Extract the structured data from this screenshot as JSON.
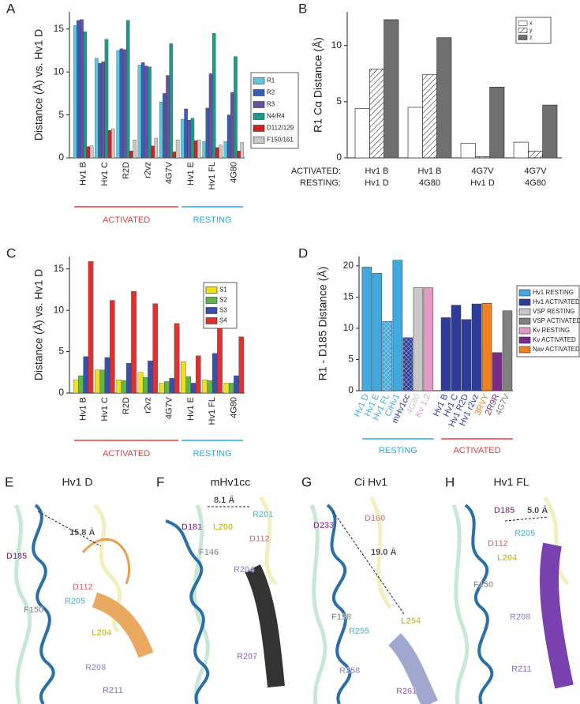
{
  "chart_data": [
    {
      "type": "bar",
      "panel": "A",
      "ylabel": "Distance (Å) vs. Hv1 D",
      "ylim": [
        0,
        17
      ],
      "yticks": [
        0,
        5,
        10,
        15
      ],
      "groups": [
        {
          "label": "ACTIVATED",
          "color": "#e0403a",
          "categories": [
            "Hv1 B",
            "Hv1 C",
            "R2D",
            "r2vz",
            "4G7V"
          ]
        },
        {
          "label": "RESTING",
          "color": "#29abe2",
          "categories": [
            "Hv1 E",
            "Hv1 FL",
            "4G80"
          ]
        }
      ],
      "series": [
        {
          "name": "R1",
          "color": "#5bc8e0",
          "values": [
            15.4,
            11.6,
            12.5,
            10.8,
            6.5,
            4.5,
            1.9,
            1.9
          ]
        },
        {
          "name": "R2",
          "color": "#3a5fb0",
          "values": [
            16.0,
            11.0,
            12.7,
            11.1,
            7.5,
            5.7,
            5.8,
            5.0
          ]
        },
        {
          "name": "R3",
          "color": "#6b4fa0",
          "values": [
            16.1,
            11.2,
            12.6,
            10.7,
            9.6,
            4.4,
            9.8,
            7.6
          ]
        },
        {
          "name": "N4/R4",
          "color": "#1a9b8a",
          "values": [
            14.7,
            13.8,
            16.0,
            10.6,
            13.3,
            4.6,
            14.5,
            11.8
          ]
        },
        {
          "name": "D112/129",
          "color": "#d02020",
          "values": [
            1.3,
            3.2,
            0.8,
            1.4,
            0.7,
            2.0,
            1.2,
            0.8
          ]
        },
        {
          "name": "F150/161",
          "color": "#c8c8c8",
          "values": [
            1.4,
            3.4,
            2.1,
            2.3,
            2.1,
            2.1,
            1.5,
            1.8
          ]
        }
      ]
    },
    {
      "type": "bar",
      "panel": "B",
      "ylabel": "R1 Cα Distance (Å)",
      "ylim": [
        0,
        13
      ],
      "yticks": [
        0,
        5,
        10
      ],
      "category_rows": [
        {
          "label": "ACTIVATED:",
          "categories": [
            "Hv1 B",
            "Hv1 B",
            "4G7V",
            "4G7V"
          ]
        },
        {
          "label": "RESTING:",
          "categories": [
            "Hv1 D",
            "4G80",
            "Hv1 D",
            "4G80"
          ]
        }
      ],
      "series": [
        {
          "name": "x",
          "color": "#ffffff",
          "values": [
            4.4,
            4.5,
            1.3,
            1.4
          ]
        },
        {
          "name": "y",
          "color": "#ffffff",
          "pattern": "hatch",
          "values": [
            7.9,
            7.4,
            0.1,
            0.6
          ]
        },
        {
          "name": "z",
          "color": "#707070",
          "values": [
            12.3,
            10.7,
            6.3,
            4.7
          ]
        }
      ]
    },
    {
      "type": "bar",
      "panel": "C",
      "ylabel": "Distance (Å) vs. Hv1 D",
      "ylim": [
        0,
        16.5
      ],
      "yticks": [
        0,
        5,
        10,
        15
      ],
      "groups": [
        {
          "label": "ACTIVATED",
          "color": "#e0403a",
          "categories": [
            "Hv1 B",
            "Hv1 C",
            "R2D",
            "r2vz",
            "4G7V"
          ]
        },
        {
          "label": "RESTING",
          "color": "#29abe2",
          "categories": [
            "Hv1 E",
            "Hv1 FL",
            "4G80"
          ]
        }
      ],
      "series": [
        {
          "name": "S1",
          "color": "#f0e020",
          "values": [
            1.6,
            2.8,
            1.6,
            2.5,
            1.2,
            3.8,
            1.6,
            1.2
          ]
        },
        {
          "name": "S2",
          "color": "#5cb848",
          "values": [
            2.1,
            2.8,
            1.5,
            1.9,
            1.4,
            2.0,
            1.5,
            1.2
          ]
        },
        {
          "name": "S3",
          "color": "#3a50a8",
          "values": [
            4.4,
            4.3,
            3.6,
            3.9,
            1.8,
            1.2,
            4.8,
            2.1
          ]
        },
        {
          "name": "S4",
          "color": "#e03030",
          "values": [
            15.9,
            11.2,
            12.3,
            10.8,
            8.4,
            4.5,
            8.4,
            6.8
          ]
        }
      ]
    },
    {
      "type": "single-bar",
      "panel": "D",
      "ylabel": "R1 - D185 Distance (Å)",
      "ylim": [
        0,
        21.5
      ],
      "yticks": [
        0,
        5,
        10,
        15,
        20
      ],
      "groups": [
        {
          "label": "RESTING",
          "color": "#29abe2",
          "categories": [
            "Hv1 D",
            "Hv1 E",
            "Hv1 FL",
            "CiHv1",
            "mHv1cc",
            "4G80",
            "Kv 1.2"
          ],
          "values": [
            19.8,
            18.8,
            11.1,
            20.9,
            8.5,
            16.5,
            16.5
          ],
          "colors": [
            "#3fa9e0",
            "#3fa9e0",
            "#3fa9e0",
            "#3fa9e0",
            "#2d3c99",
            "#c8c8c8",
            "#e49ac8"
          ],
          "hatched": [
            false,
            false,
            true,
            false,
            true,
            false,
            false
          ]
        },
        {
          "label": "ACTIVATED",
          "color": "#e0403a",
          "categories": [
            "Hv1 B",
            "Hv1 C",
            "Hv1 R2D",
            "Hv1 r2vz",
            "3RVY",
            "2R9R",
            "4G7V"
          ],
          "values": [
            11.7,
            13.7,
            11.4,
            13.9,
            14.0,
            6.1,
            12.8
          ],
          "colors": [
            "#2d3c99",
            "#2d3c99",
            "#2d3c99",
            "#2d3c99",
            "#f08020",
            "#7a2a8a",
            "#808080"
          ],
          "hatched": [
            false,
            false,
            false,
            false,
            false,
            false,
            false
          ]
        }
      ],
      "legend": [
        {
          "name": "Hv1 RESTING",
          "color": "#3fa9e0"
        },
        {
          "name": "Hv1 ACTIVATED",
          "color": "#2d3c99"
        },
        {
          "name": "VSP RESTING",
          "color": "#c8c8c8"
        },
        {
          "name": "VSP ACTIVATED",
          "color": "#808080"
        },
        {
          "name": "Kv RESTING",
          "color": "#e49ac8"
        },
        {
          "name": "Kv ACTIVATED",
          "color": "#7a2a8a"
        },
        {
          "name": "Nav ACTIVATED",
          "color": "#f08020"
        }
      ]
    }
  ],
  "structures": [
    {
      "panel": "E",
      "title": "Hv1 D",
      "labels": [
        "D185",
        "15.8 Å",
        "D112",
        "F150",
        "R205",
        "L204",
        "R208",
        "R211"
      ]
    },
    {
      "panel": "F",
      "title": "mHv1cc",
      "labels": [
        "8.1 Å",
        "R201",
        "D181",
        "L200",
        "D112",
        "F146",
        "R204",
        "R207"
      ]
    },
    {
      "panel": "G",
      "title": "Ci Hv1",
      "labels": [
        "D233",
        "D160",
        "19.0 Å",
        "F198",
        "L254",
        "R255",
        "R258",
        "R261"
      ]
    },
    {
      "panel": "H",
      "title": "Hv1 FL",
      "labels": [
        "D185",
        "5.0 Å",
        "R205",
        "D112",
        "L204",
        "F150",
        "R208",
        "R211"
      ]
    }
  ]
}
